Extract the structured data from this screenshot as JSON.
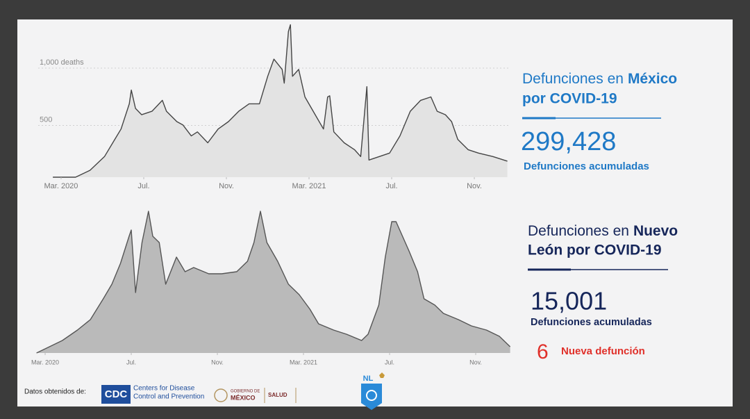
{
  "chart_data": [
    {
      "type": "area",
      "color": "#e3e3e3",
      "line_color": "#444444",
      "grid": true,
      "x": [
        -0.4,
        0.7,
        1.4,
        2.1,
        2.6,
        2.9,
        3.3,
        3.4,
        3.6,
        3.9,
        4.4,
        4.9,
        5.1,
        5.6,
        5.9,
        6.3,
        6.6,
        7.1,
        7.6,
        8.1,
        8.6,
        9.1,
        9.6,
        10.0,
        10.3,
        10.7,
        10.8,
        11.0,
        11.1,
        11.2,
        11.5,
        11.8,
        12.3,
        12.7,
        12.9,
        13.0,
        13.2,
        13.7,
        14.2,
        14.5,
        14.8,
        14.9,
        15.4,
        15.9,
        16.4,
        16.9,
        17.4,
        17.9,
        18.2,
        18.6,
        18.9,
        19.2,
        19.7,
        20.2,
        20.9,
        21.6
      ],
      "values": [
        0,
        0,
        60,
        180,
        330,
        420,
        640,
        760,
        600,
        545,
        575,
        670,
        575,
        485,
        455,
        360,
        395,
        300,
        420,
        485,
        575,
        640,
        640,
        880,
        1030,
        940,
        820,
        1270,
        1330,
        880,
        940,
        700,
        545,
        420,
        700,
        710,
        395,
        300,
        240,
        180,
        790,
        150,
        180,
        210,
        360,
        575,
        670,
        700,
        575,
        545,
        485,
        330,
        240,
        210,
        180,
        140
      ],
      "xlim": [
        -0.5,
        21.7
      ],
      "ylim": [
        0,
        1350
      ],
      "xticks": [
        {
          "value": 0,
          "label": "Mar. 2020"
        },
        {
          "value": 4,
          "label": "Jul."
        },
        {
          "value": 8,
          "label": "Nov."
        },
        {
          "value": 12,
          "label": "Mar. 2021"
        },
        {
          "value": 16,
          "label": "Jul."
        },
        {
          "value": 20,
          "label": "Nov."
        }
      ],
      "yticks": [
        500,
        {
          "value": 1000,
          "label": "1,000 deaths"
        }
      ]
    },
    {
      "type": "area",
      "color": "#bababa",
      "line_color": "#555555",
      "x": [
        -0.4,
        0.2,
        0.8,
        1.5,
        2.1,
        2.7,
        3.1,
        3.5,
        3.9,
        4.0,
        4.2,
        4.5,
        4.8,
        5.0,
        5.3,
        5.6,
        6.1,
        6.5,
        6.9,
        7.6,
        8.2,
        8.9,
        9.4,
        9.7,
        10.0,
        10.3,
        10.8,
        11.3,
        11.8,
        12.3,
        12.7,
        13.4,
        14.0,
        14.7,
        15.0,
        15.5,
        15.8,
        16.1,
        16.3,
        16.6,
        16.9,
        17.3,
        17.6,
        18.1,
        18.5,
        19.2,
        19.8,
        20.5,
        21.1,
        21.6
      ],
      "values": [
        0,
        3,
        6,
        11,
        16,
        26,
        33,
        43,
        56,
        59,
        29,
        53,
        68,
        56,
        53,
        33,
        46,
        39,
        41,
        38,
        38,
        39,
        44,
        53,
        68,
        53,
        44,
        33,
        28,
        21,
        14,
        11,
        9,
        6,
        9,
        23,
        46,
        63,
        63,
        56,
        49,
        39,
        26,
        23,
        19,
        16,
        13,
        11,
        8,
        3
      ],
      "xlim": [
        -0.5,
        21.7
      ],
      "ylim": [
        0,
        70
      ],
      "xticks": [
        {
          "value": 0,
          "label": "Mar. 2020"
        },
        {
          "value": 4,
          "label": "Jul."
        },
        {
          "value": 8,
          "label": "Nov."
        },
        {
          "value": 12,
          "label": "Mar. 2021"
        },
        {
          "value": 16,
          "label": "Jul."
        },
        {
          "value": 20,
          "label": "Nov."
        }
      ]
    }
  ],
  "panels": [
    {
      "title": [
        "Defunciones en",
        "México",
        "por COVID-19"
      ],
      "total": "299,428",
      "total_label": "Defunciones acumuladas"
    },
    {
      "title": [
        "Defunciones en",
        "Nuevo",
        "León por COVID-19"
      ],
      "total": "15,001",
      "total_label": "Defunciones acumuladas",
      "new": "6",
      "new_label": "Nueva defunción"
    }
  ],
  "footer": {
    "source": "Datos obtenidos de:",
    "cdc": "CDC",
    "cdc_name": [
      "Centers for Disease",
      "Control and Prevention"
    ],
    "gov": [
      "GOBIERNO DE",
      "MÉXICO"
    ],
    "salud": "SALUD",
    "state": "NL"
  }
}
